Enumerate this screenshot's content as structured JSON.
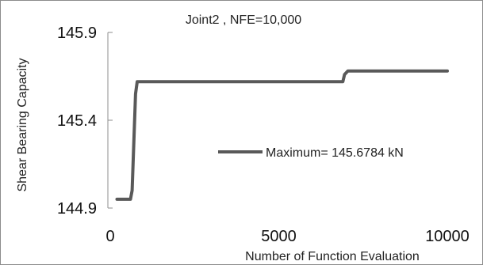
{
  "chart_data": {
    "type": "line",
    "title": "Joint2 , NFE=10,000",
    "xlabel": "Number of Function Evaluation",
    "ylabel": "Shear Bearing Capacity",
    "xlim": [
      0,
      10000
    ],
    "ylim": [
      144.9,
      145.9
    ],
    "xticks": [
      0,
      5000,
      10000
    ],
    "yticks": [
      145.9,
      145.4,
      144.9
    ],
    "legend_position": "center-right",
    "grid": false,
    "series": [
      {
        "name": "Maximum= 145.6784 kN",
        "color": "#595959",
        "x": [
          200,
          600,
          650,
          750,
          800,
          3000,
          5000,
          6500,
          6900,
          6950,
          7050,
          8500,
          10000
        ],
        "y": [
          144.95,
          144.95,
          145.0,
          145.55,
          145.62,
          145.62,
          145.62,
          145.62,
          145.62,
          145.66,
          145.68,
          145.68,
          145.68
        ]
      }
    ]
  }
}
